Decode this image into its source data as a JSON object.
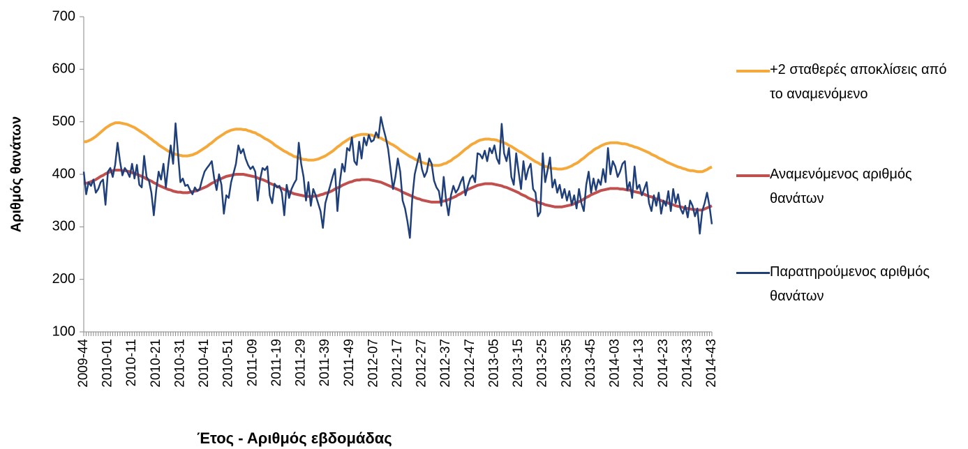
{
  "chart_data": {
    "type": "line",
    "x_label": "Έτος - Αριθμός εβδομάδας",
    "y_label": "Αριθμός θανάτων",
    "ylim": [
      100,
      700
    ],
    "yticks": [
      100,
      200,
      300,
      400,
      500,
      600,
      700
    ],
    "grid": false,
    "legend": "right",
    "categories": [
      "2009-44",
      null,
      null,
      null,
      null,
      null,
      null,
      null,
      null,
      null,
      "2010-01",
      null,
      null,
      null,
      null,
      null,
      null,
      null,
      null,
      null,
      "2010-11",
      null,
      null,
      null,
      null,
      null,
      null,
      null,
      null,
      null,
      "2010-21",
      null,
      null,
      null,
      null,
      null,
      null,
      null,
      null,
      null,
      "2010-31",
      null,
      null,
      null,
      null,
      null,
      null,
      null,
      null,
      null,
      "2010-41",
      null,
      null,
      null,
      null,
      null,
      null,
      null,
      null,
      null,
      "2010-51",
      null,
      null,
      null,
      null,
      null,
      null,
      null,
      null,
      null,
      "2011-09",
      null,
      null,
      null,
      null,
      null,
      null,
      null,
      null,
      null,
      "2011-19",
      null,
      null,
      null,
      null,
      null,
      null,
      null,
      null,
      null,
      "2011-29",
      null,
      null,
      null,
      null,
      null,
      null,
      null,
      null,
      null,
      "2011-39",
      null,
      null,
      null,
      null,
      null,
      null,
      null,
      null,
      null,
      "2011-49",
      null,
      null,
      null,
      null,
      null,
      null,
      null,
      null,
      null,
      "2012-07",
      null,
      null,
      null,
      null,
      null,
      null,
      null,
      null,
      null,
      "2012-17",
      null,
      null,
      null,
      null,
      null,
      null,
      null,
      null,
      null,
      "2012-27",
      null,
      null,
      null,
      null,
      null,
      null,
      null,
      null,
      null,
      "2012-37",
      null,
      null,
      null,
      null,
      null,
      null,
      null,
      null,
      null,
      "2012-47",
      null,
      null,
      null,
      null,
      null,
      null,
      null,
      null,
      null,
      "2013-05",
      null,
      null,
      null,
      null,
      null,
      null,
      null,
      null,
      null,
      "2013-15",
      null,
      null,
      null,
      null,
      null,
      null,
      null,
      null,
      null,
      "2013-25",
      null,
      null,
      null,
      null,
      null,
      null,
      null,
      null,
      null,
      "2013-35",
      null,
      null,
      null,
      null,
      null,
      null,
      null,
      null,
      null,
      "2013-45",
      null,
      null,
      null,
      null,
      null,
      null,
      null,
      null,
      null,
      "2014-03",
      null,
      null,
      null,
      null,
      null,
      null,
      null,
      null,
      null,
      "2014-13",
      null,
      null,
      null,
      null,
      null,
      null,
      null,
      null,
      null,
      "2014-23",
      null,
      null,
      null,
      null,
      null,
      null,
      null,
      null,
      null,
      "2014-33",
      null,
      null,
      null,
      null,
      null,
      null,
      null,
      null,
      null,
      "2014-43"
    ],
    "series": [
      {
        "name": "+2 σταθερές αποκλίσεις από το αναμενόμενο",
        "color": "#f5a93b",
        "width": 4,
        "values": [
          462,
          462,
          464,
          466,
          469,
          472,
          476,
          480,
          484,
          488,
          491,
          494,
          496,
          498,
          498,
          498,
          497,
          496,
          495,
          493,
          491,
          489,
          486,
          483,
          480,
          477,
          474,
          470,
          467,
          463,
          460,
          456,
          453,
          450,
          447,
          444,
          442,
          440,
          438,
          437,
          436,
          435,
          435,
          435,
          436,
          437,
          439,
          441,
          444,
          447,
          450,
          453,
          457,
          460,
          464,
          468,
          471,
          474,
          477,
          480,
          482,
          484,
          485,
          486,
          486,
          486,
          485,
          485,
          483,
          482,
          480,
          479,
          476,
          474,
          471,
          468,
          466,
          463,
          460,
          456,
          453,
          450,
          447,
          444,
          442,
          439,
          437,
          434,
          433,
          431,
          430,
          428,
          428,
          427,
          427,
          427,
          428,
          429,
          431,
          433,
          435,
          438,
          441,
          444,
          448,
          452,
          455,
          459,
          462,
          465,
          468,
          470,
          472,
          474,
          475,
          476,
          476,
          476,
          475,
          475,
          473,
          472,
          470,
          469,
          466,
          464,
          461,
          458,
          456,
          453,
          450,
          446,
          443,
          440,
          437,
          434,
          432,
          429,
          427,
          424,
          423,
          421,
          420,
          418,
          418,
          417,
          417,
          417,
          418,
          420,
          421,
          424,
          426,
          430,
          433,
          436,
          440,
          444,
          448,
          451,
          455,
          458,
          460,
          463,
          465,
          466,
          467,
          467,
          467,
          466,
          466,
          465,
          463,
          462,
          460,
          458,
          455,
          453,
          450,
          447,
          444,
          442,
          439,
          436,
          433,
          430,
          427,
          424,
          422,
          419,
          417,
          415,
          414,
          412,
          411,
          411,
          410,
          410,
          410,
          411,
          412,
          414,
          416,
          419,
          421,
          424,
          428,
          431,
          435,
          439,
          442,
          446,
          449,
          451,
          454,
          456,
          458,
          459,
          460,
          460,
          460,
          460,
          459,
          458,
          458,
          457,
          455,
          454,
          452,
          451,
          449,
          447,
          445,
          443,
          441,
          438,
          436,
          434,
          431,
          429,
          427,
          424,
          422,
          420,
          418,
          416,
          414,
          413,
          411,
          410,
          408,
          407,
          407,
          406,
          405,
          405,
          405,
          407,
          409,
          412,
          414
        ]
      },
      {
        "name": "Αναμενόμενος αριθμός θανάτων",
        "color": "#c0504d",
        "width": 4,
        "values": [
          383,
          383,
          384,
          386,
          388,
          390,
          393,
          396,
          398,
          401,
          403,
          405,
          407,
          408,
          408,
          408,
          407,
          407,
          406,
          405,
          403,
          402,
          400,
          398,
          396,
          394,
          391,
          389,
          387,
          384,
          382,
          379,
          377,
          375,
          373,
          371,
          370,
          368,
          367,
          366,
          366,
          365,
          365,
          365,
          366,
          367,
          368,
          369,
          371,
          373,
          375,
          377,
          380,
          383,
          385,
          388,
          390,
          392,
          394,
          396,
          397,
          398,
          399,
          400,
          400,
          400,
          400,
          399,
          398,
          397,
          396,
          395,
          393,
          391,
          390,
          388,
          386,
          383,
          381,
          379,
          377,
          375,
          373,
          371,
          369,
          367,
          365,
          363,
          362,
          361,
          360,
          359,
          358,
          358,
          358,
          358,
          359,
          359,
          361,
          362,
          364,
          365,
          367,
          369,
          372,
          374,
          376,
          379,
          381,
          383,
          385,
          386,
          388,
          389,
          389,
          390,
          390,
          390,
          390,
          389,
          388,
          387,
          386,
          385,
          383,
          381,
          379,
          377,
          375,
          373,
          371,
          369,
          366,
          364,
          362,
          360,
          358,
          356,
          354,
          353,
          351,
          350,
          349,
          348,
          347,
          347,
          347,
          347,
          348,
          349,
          350,
          352,
          354,
          356,
          358,
          361,
          363,
          366,
          368,
          371,
          373,
          375,
          377,
          379,
          380,
          381,
          382,
          382,
          382,
          382,
          381,
          380,
          379,
          378,
          376,
          375,
          373,
          371,
          369,
          367,
          365,
          362,
          360,
          358,
          355,
          353,
          351,
          349,
          347,
          345,
          344,
          342,
          341,
          340,
          339,
          338,
          338,
          338,
          338,
          339,
          340,
          341,
          342,
          344,
          346,
          348,
          350,
          353,
          356,
          358,
          361,
          363,
          365,
          367,
          369,
          370,
          371,
          372,
          373,
          373,
          373,
          373,
          372,
          372,
          371,
          370,
          370,
          368,
          367,
          366,
          365,
          363,
          362,
          360,
          358,
          357,
          355,
          353,
          352,
          350,
          348,
          347,
          345,
          343,
          342,
          340,
          339,
          338,
          337,
          335,
          335,
          334,
          333,
          333,
          332,
          332,
          332,
          334,
          336,
          338,
          340
        ]
      },
      {
        "name": "Παρατηρούμενος αριθμός θανάτων",
        "color": "#1f3f7a",
        "width": 2.5,
        "values": [
          405,
          362,
          385,
          378,
          390,
          365,
          372,
          385,
          390,
          342,
          405,
          412,
          395,
          418,
          460,
          425,
          398,
          412,
          405,
          395,
          420,
          392,
          418,
          380,
          375,
          435,
          395,
          388,
          365,
          322,
          370,
          405,
          390,
          420,
          375,
          418,
          455,
          420,
          497,
          440,
          385,
          392,
          378,
          380,
          370,
          362,
          375,
          368,
          372,
          390,
          405,
          412,
          418,
          425,
          392,
          370,
          400,
          380,
          325,
          360,
          355,
          385,
          402,
          420,
          455,
          440,
          448,
          430,
          418,
          410,
          415,
          405,
          350,
          390,
          412,
          408,
          415,
          360,
          345,
          382,
          375,
          378,
          365,
          322,
          380,
          355,
          372,
          382,
          390,
          460,
          420,
          395,
          350,
          385,
          340,
          372,
          360,
          345,
          330,
          298,
          345,
          362,
          378,
          395,
          410,
          330,
          385,
          420,
          405,
          450,
          445,
          470,
          425,
          418,
          462,
          430,
          470,
          455,
          475,
          462,
          465,
          480,
          470,
          509,
          488,
          470,
          448,
          410,
          372,
          395,
          430,
          405,
          350,
          335,
          310,
          279,
          355,
          400,
          420,
          440,
          410,
          395,
          405,
          430,
          420,
          388,
          375,
          368,
          340,
          395,
          350,
          322,
          360,
          378,
          365,
          372,
          385,
          395,
          360,
          378,
          392,
          398,
          385,
          440,
          438,
          430,
          445,
          425,
          450,
          440,
          455,
          430,
          420,
          496,
          440,
          425,
          450,
          395,
          380,
          440,
          405,
          372,
          425,
          390,
          410,
          420,
          372,
          365,
          320,
          328,
          440,
          385,
          408,
          432,
          375,
          390,
          365,
          380,
          355,
          372,
          350,
          368,
          342,
          360,
          335,
          372,
          345,
          330,
          380,
          405,
          365,
          392,
          370,
          390,
          380,
          410,
          385,
          450,
          400,
          425,
          415,
          395,
          405,
          420,
          425,
          370,
          385,
          355,
          415,
          372,
          380,
          360,
          372,
          385,
          345,
          330,
          360,
          340,
          365,
          325,
          350,
          340,
          368,
          330,
          372,
          345,
          362,
          335,
          325,
          340,
          318,
          350,
          340,
          320,
          335,
          287,
          330,
          345,
          365,
          340,
          305
        ]
      }
    ]
  }
}
